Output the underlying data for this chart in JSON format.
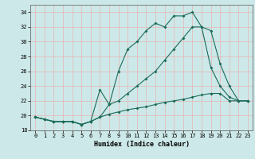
{
  "title": "",
  "xlabel": "Humidex (Indice chaleur)",
  "bg_color": "#cde8e8",
  "line_color": "#1a6b5a",
  "grid_color": "#e8b4b4",
  "xlim": [
    -0.5,
    23.5
  ],
  "ylim": [
    18,
    35
  ],
  "yticks": [
    18,
    20,
    22,
    24,
    26,
    28,
    30,
    32,
    34
  ],
  "xticks": [
    0,
    1,
    2,
    3,
    4,
    5,
    6,
    7,
    8,
    9,
    10,
    11,
    12,
    13,
    14,
    15,
    16,
    17,
    18,
    19,
    20,
    21,
    22,
    23
  ],
  "line1_x": [
    0,
    1,
    2,
    3,
    4,
    5,
    6,
    7,
    8,
    9,
    10,
    11,
    12,
    13,
    14,
    15,
    16,
    17,
    18,
    19,
    20,
    21,
    22,
    23
  ],
  "line1_y": [
    19.8,
    19.5,
    19.2,
    19.2,
    19.2,
    18.8,
    19.2,
    23.5,
    21.5,
    26.0,
    29.0,
    30.0,
    31.5,
    32.5,
    32.0,
    33.5,
    33.5,
    34.0,
    32.0,
    31.5,
    27.0,
    24.0,
    22.0,
    22.0
  ],
  "line2_x": [
    0,
    1,
    2,
    3,
    4,
    5,
    6,
    7,
    8,
    9,
    10,
    11,
    12,
    13,
    14,
    15,
    16,
    17,
    18,
    19,
    20,
    21,
    22,
    23
  ],
  "line2_y": [
    19.8,
    19.5,
    19.2,
    19.2,
    19.2,
    18.8,
    19.2,
    19.8,
    21.5,
    22.0,
    23.0,
    24.0,
    25.0,
    26.0,
    27.5,
    29.0,
    30.5,
    32.0,
    32.0,
    26.5,
    24.0,
    22.5,
    22.0,
    22.0
  ],
  "line3_x": [
    0,
    1,
    2,
    3,
    4,
    5,
    6,
    7,
    8,
    9,
    10,
    11,
    12,
    13,
    14,
    15,
    16,
    17,
    18,
    19,
    20,
    21,
    22,
    23
  ],
  "line3_y": [
    19.8,
    19.5,
    19.2,
    19.2,
    19.2,
    18.8,
    19.2,
    19.8,
    20.2,
    20.5,
    20.8,
    21.0,
    21.2,
    21.5,
    21.8,
    22.0,
    22.2,
    22.5,
    22.8,
    23.0,
    23.0,
    22.0,
    22.0,
    22.0
  ],
  "tick_fontsize": 5,
  "xlabel_fontsize": 6,
  "marker_size": 2.0,
  "linewidth": 0.8
}
